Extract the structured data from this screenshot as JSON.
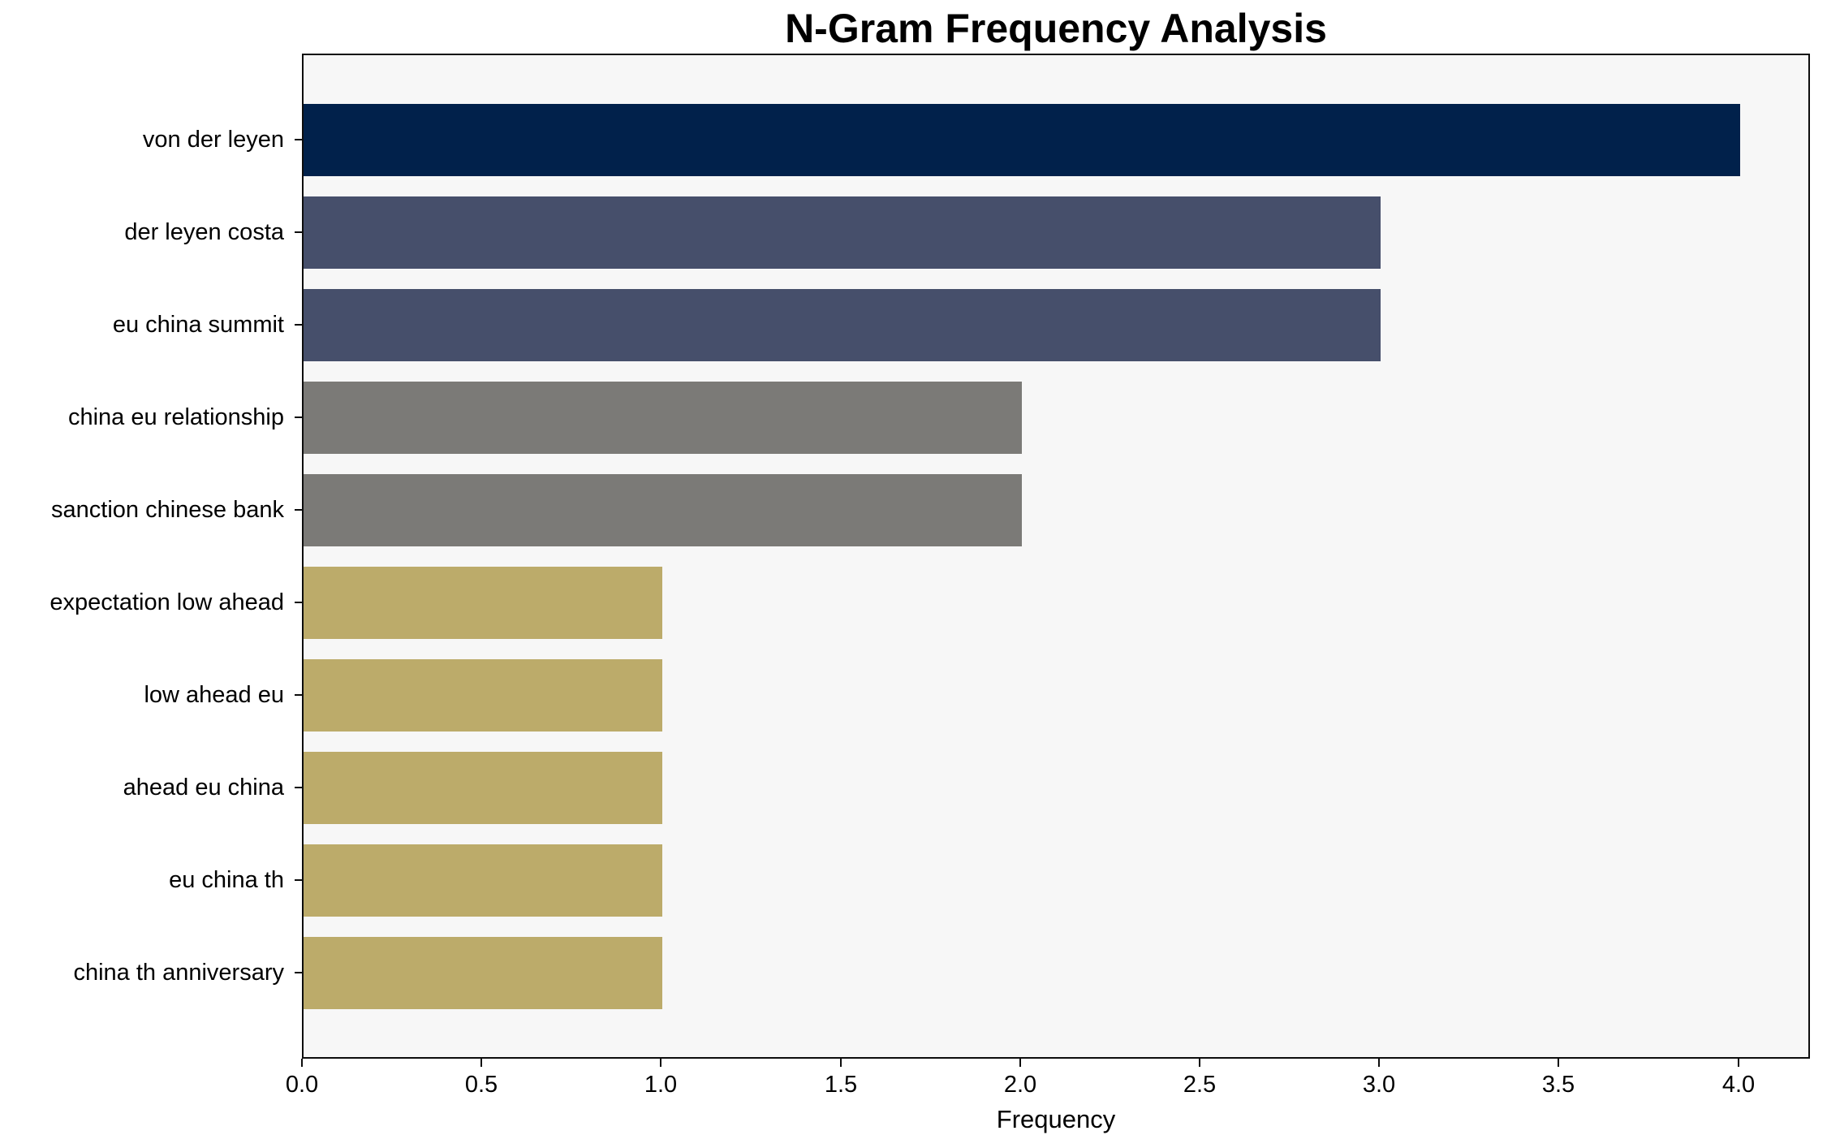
{
  "chart_data": {
    "type": "bar",
    "orientation": "horizontal",
    "title": "N-Gram Frequency Analysis",
    "xlabel": "Frequency",
    "ylabel": "",
    "categories": [
      "von der leyen",
      "der leyen costa",
      "eu china summit",
      "china eu relationship",
      "sanction chinese bank",
      "expectation low ahead",
      "low ahead eu",
      "ahead eu china",
      "eu china th",
      "china th anniversary"
    ],
    "values": [
      4,
      3,
      3,
      2,
      2,
      1,
      1,
      1,
      1,
      1
    ],
    "xlim": [
      0,
      4.2
    ],
    "x_ticks": [
      "0.0",
      "0.5",
      "1.0",
      "1.5",
      "2.0",
      "2.5",
      "3.0",
      "3.5",
      "4.0"
    ],
    "grid": false,
    "legend": "none",
    "bar_colors": [
      "#01214b",
      "#464f6b",
      "#464f6b",
      "#7b7a77",
      "#7b7a77",
      "#bcab6a",
      "#bcab6a",
      "#bcab6a",
      "#bcab6a",
      "#bcab6a"
    ],
    "colors": {
      "plot_background": "#f7f7f7",
      "figure_background": "#ffffff",
      "spine": "#0d0d0d",
      "text": "#000000"
    }
  }
}
